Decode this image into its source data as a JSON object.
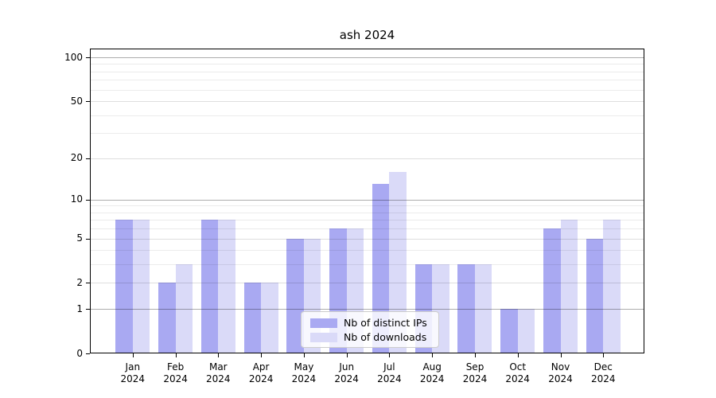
{
  "chart_data": {
    "type": "bar",
    "title": "ash 2024",
    "x_year_label": "2024",
    "categories": [
      "Jan",
      "Feb",
      "Mar",
      "Apr",
      "May",
      "Jun",
      "Jul",
      "Aug",
      "Sep",
      "Oct",
      "Nov",
      "Dec"
    ],
    "series": [
      {
        "name": "Nb of distinct IPs",
        "color": "#a9a9f2",
        "values": [
          7,
          2,
          7,
          2,
          5,
          6,
          13,
          3,
          3,
          1,
          6,
          5
        ]
      },
      {
        "name": "Nb of downloads",
        "color": "#dadaf8",
        "values": [
          7,
          3,
          7,
          2,
          5,
          6,
          16,
          3,
          3,
          1,
          7,
          7
        ]
      }
    ],
    "y_axis": {
      "scale": "log10(1+value)",
      "ylim": [
        0,
        115
      ],
      "ticks": [
        0,
        1,
        2,
        5,
        10,
        20,
        50,
        100
      ],
      "major_gridlines": [
        1,
        10,
        100
      ],
      "tick_gridlines": [
        2,
        5,
        20,
        50
      ],
      "minor_gridlines": [
        3,
        4,
        6,
        7,
        8,
        9,
        30,
        40,
        60,
        70,
        80,
        90
      ]
    },
    "legend": {
      "position": "lower center",
      "items": [
        "Nb of distinct IPs",
        "Nb of downloads"
      ]
    }
  }
}
